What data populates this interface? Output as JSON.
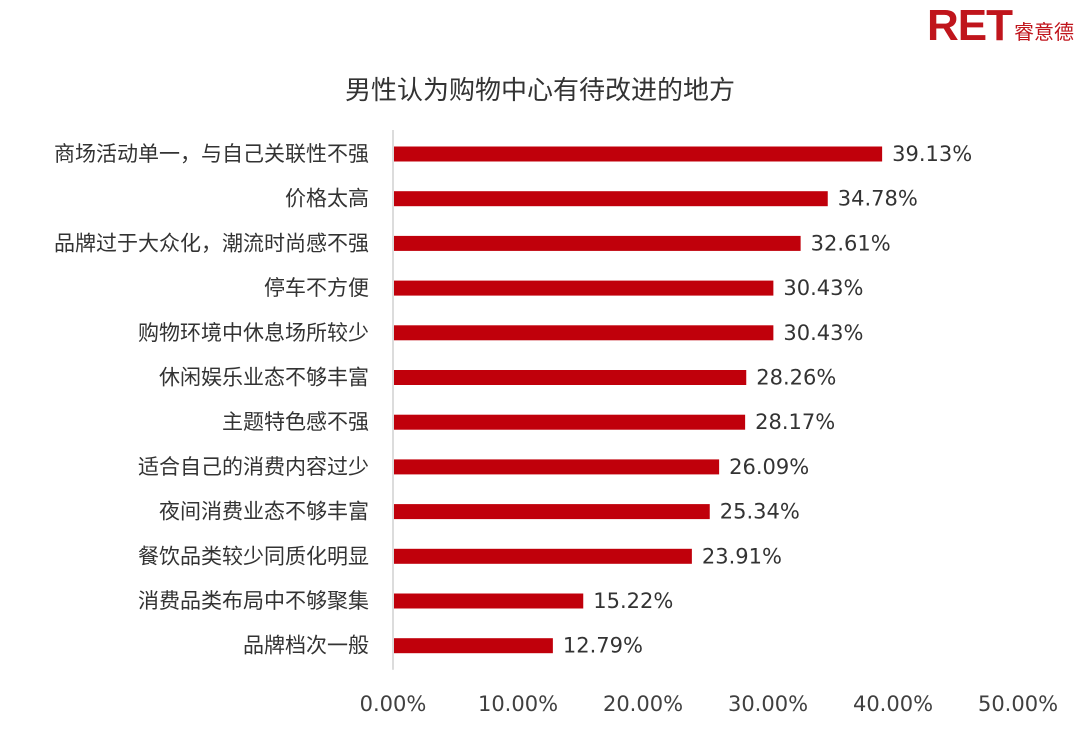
{
  "logo": {
    "mark": "RET",
    "cn": "睿意德"
  },
  "chart_data": {
    "type": "bar",
    "orientation": "horizontal",
    "title": "男性认为购物中心有待改进的地方",
    "xlim": [
      0,
      50
    ],
    "grid": false,
    "categories": [
      "商场活动单一，与自己关联性不强",
      "价格太高",
      "品牌过于大众化，潮流时尚感不强",
      "停车不方便",
      "购物环境中休息场所较少",
      "休闲娱乐业态不够丰富",
      "主题特色感不强",
      "适合自己的消费内容过少",
      "夜间消费业态不够丰富",
      "餐饮品类较少同质化明显",
      "消费品类布局中不够聚集",
      "品牌档次一般"
    ],
    "values": [
      39.13,
      34.78,
      32.61,
      30.43,
      30.43,
      28.26,
      28.17,
      26.09,
      25.34,
      23.91,
      15.22,
      12.79
    ],
    "value_labels": [
      "39.13%",
      "34.78%",
      "32.61%",
      "30.43%",
      "30.43%",
      "28.26%",
      "28.17%",
      "26.09%",
      "25.34%",
      "23.91%",
      "15.22%",
      "12.79%"
    ],
    "x_ticks": [
      0,
      10,
      20,
      30,
      40,
      50
    ],
    "x_tick_labels": [
      "0.00%",
      "10.00%",
      "20.00%",
      "30.00%",
      "40.00%",
      "50.00%"
    ],
    "bar_color": "#c0000b",
    "axis_color": "#d0d0d0"
  }
}
